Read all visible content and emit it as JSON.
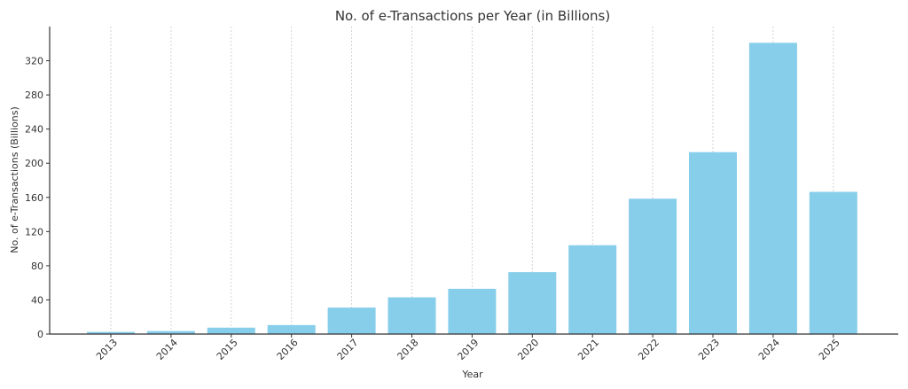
{
  "chart_data": {
    "type": "bar",
    "title": "No. of e-Transactions per Year (in Billions)",
    "xlabel": "Year",
    "ylabel": "No. of e-Transactions (Billions)",
    "categories": [
      "2013",
      "2014",
      "2015",
      "2016",
      "2017",
      "2018",
      "2019",
      "2020",
      "2021",
      "2022",
      "2023",
      "2024",
      "2025"
    ],
    "values": [
      2.5,
      3.5,
      7.5,
      10.5,
      31,
      43,
      53,
      72.5,
      104,
      158.5,
      213,
      341,
      166.5
    ],
    "yticks": [
      0,
      40,
      80,
      120,
      160,
      200,
      240,
      280,
      320
    ],
    "ylim": [
      0,
      360
    ],
    "grid": "vertical dashed",
    "bar_color": "#87ceeb"
  }
}
